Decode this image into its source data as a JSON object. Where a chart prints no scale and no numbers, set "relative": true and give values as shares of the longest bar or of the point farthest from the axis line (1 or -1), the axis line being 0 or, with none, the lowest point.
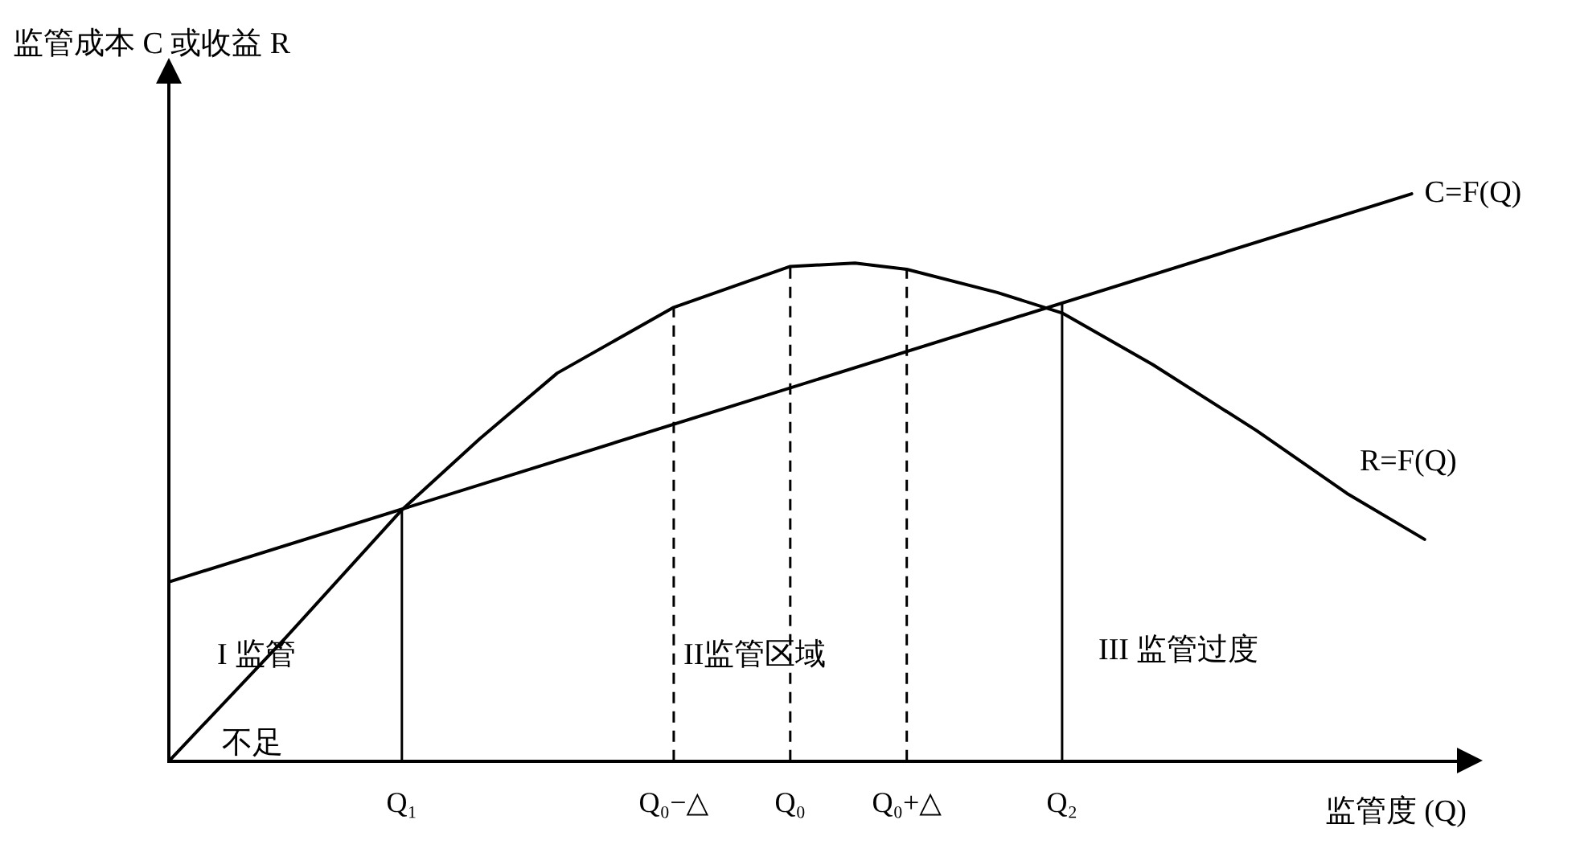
{
  "chart_data": {
    "type": "line",
    "relative": true,
    "ylabel": "监管成本 C 或收益 R",
    "xlabel": "监管度 (Q)",
    "categories": [
      null,
      null,
      null,
      null,
      null,
      null,
      null,
      null,
      null,
      null,
      null,
      null,
      null,
      null,
      null,
      null,
      null,
      null,
      "Q₁",
      null,
      null,
      null,
      null,
      null,
      null,
      null,
      null,
      null,
      null,
      null,
      null,
      null,
      null,
      null,
      null,
      null,
      null,
      null,
      null,
      "Q₀−△",
      null,
      null,
      null,
      null,
      null,
      null,
      null,
      null,
      "Q₀",
      null,
      null,
      null,
      null,
      null,
      null,
      null,
      null,
      "Q₀+△",
      null,
      null,
      null,
      null,
      null,
      null,
      null,
      null,
      null,
      null,
      null,
      "Q₂",
      null,
      null,
      null,
      null,
      null,
      null,
      null,
      null,
      null,
      null,
      null,
      null,
      null,
      null,
      null,
      null,
      null,
      null,
      null,
      null,
      null,
      null,
      null,
      null,
      null,
      null,
      null,
      null,
      null,
      null,
      null
    ],
    "tick_labels": "x",
    "grid": false,
    "legend": false,
    "marker": "none",
    "line_style": "solid",
    "series": [
      {
        "name": "C=F(Q)",
        "color": "#000000",
        "values": [
          0.316,
          null,
          null,
          null,
          null,
          null,
          null,
          null,
          null,
          null,
          null,
          null,
          null,
          null,
          null,
          null,
          null,
          null,
          null,
          null,
          null,
          null,
          null,
          null,
          null,
          null,
          null,
          null,
          null,
          null,
          null,
          null,
          null,
          null,
          null,
          null,
          null,
          null,
          null,
          null,
          null,
          null,
          null,
          null,
          null,
          null,
          null,
          null,
          null,
          null,
          null,
          null,
          null,
          null,
          null,
          null,
          null,
          null,
          null,
          null,
          null,
          null,
          null,
          null,
          null,
          null,
          null,
          null,
          null,
          null,
          null,
          null,
          null,
          null,
          null,
          null,
          null,
          null,
          null,
          null,
          null,
          null,
          null,
          null,
          null,
          null,
          null,
          null,
          null,
          null,
          null,
          null,
          null,
          null,
          null,
          null,
          1,
          null,
          null,
          null,
          null
        ]
      },
      {
        "name": "R=F(Q)",
        "color": "#000000",
        "values": [
          0,
          null,
          null,
          null,
          null,
          null,
          null,
          null,
          null,
          0.217,
          null,
          null,
          null,
          null,
          null,
          null,
          null,
          null,
          0.443,
          null,
          null,
          null,
          null,
          null,
          0.568,
          null,
          null,
          null,
          null,
          null,
          0.684,
          null,
          null,
          null,
          null,
          null,
          null,
          null,
          null,
          0.8,
          null,
          null,
          null,
          null,
          null,
          null,
          null,
          null,
          0.872,
          null,
          null,
          null,
          null,
          0.878,
          null,
          null,
          null,
          0.867,
          null,
          null,
          null,
          null,
          null,
          null,
          0.826,
          null,
          null,
          null,
          null,
          0.79,
          null,
          null,
          null,
          null,
          null,
          null,
          0.699,
          null,
          null,
          null,
          null,
          null,
          null,
          null,
          0.583,
          null,
          null,
          null,
          null,
          null,
          null,
          0.472,
          null,
          null,
          null,
          null,
          null,
          0.391,
          null,
          null,
          null
        ]
      }
    ],
    "ref_lines": [
      {
        "axis": "x",
        "value": "Q₁",
        "color": "#000000",
        "line_style": "solid"
      },
      {
        "axis": "x",
        "value": "Q₀−△",
        "color": "#000000",
        "line_style": "dashed"
      },
      {
        "axis": "x",
        "value": "Q₀",
        "color": "#000000",
        "line_style": "dashed"
      },
      {
        "axis": "x",
        "value": "Q₀+△",
        "color": "#000000",
        "line_style": "dashed"
      },
      {
        "axis": "x",
        "value": "Q₂",
        "color": "#000000",
        "line_style": "solid"
      }
    ],
    "annotations": [
      "I 监管",
      "不足",
      "II监管区域",
      "III 监管过度"
    ]
  }
}
